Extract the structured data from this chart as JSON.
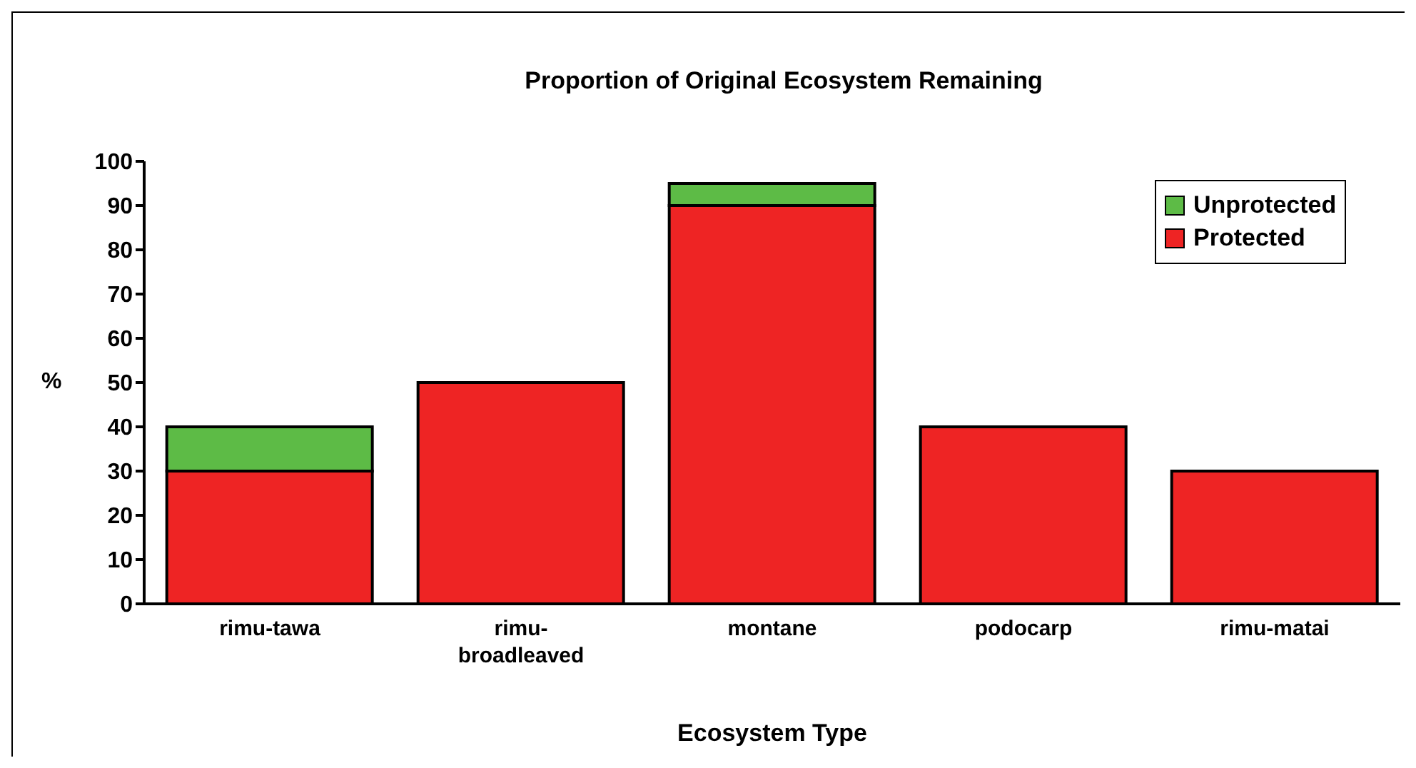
{
  "chart_data": {
    "type": "bar",
    "title": "Proportion of Original Ecosystem Remaining",
    "xlabel": "Ecosystem Type",
    "ylabel": "%",
    "categories": [
      "rimu-tawa",
      "rimu-broadleaved",
      "montane",
      "podocarp",
      "rimu-matai"
    ],
    "series": [
      {
        "name": "Protected",
        "color": "#ee2424",
        "values": [
          30,
          50,
          90,
          40,
          30
        ]
      },
      {
        "name": "Unprotected",
        "color": "#5dbb46",
        "values": [
          10,
          null,
          5,
          null,
          null
        ]
      }
    ],
    "stacked": true,
    "ylim": [
      0,
      100
    ],
    "yticks": [
      0,
      10,
      20,
      30,
      40,
      50,
      60,
      70,
      80,
      90,
      100
    ],
    "grid": false,
    "legend": "top right"
  }
}
